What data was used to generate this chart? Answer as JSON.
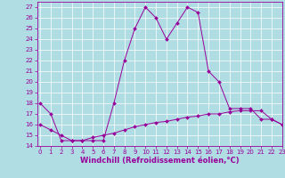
{
  "line1_y": [
    18,
    17,
    14.5,
    14.5,
    14.5,
    14.5,
    14.5,
    18,
    22,
    25,
    27,
    26,
    24,
    25.5,
    27,
    26.5,
    21,
    20,
    17.5,
    17.5,
    17.5,
    16.5,
    16.5,
    16
  ],
  "line2_y": [
    16,
    15.5,
    15,
    14.5,
    14.5,
    14.8,
    15,
    15.2,
    15.5,
    15.8,
    16,
    16.2,
    16.3,
    16.5,
    16.7,
    16.8,
    17,
    17,
    17.2,
    17.3,
    17.3,
    17.3,
    16.5,
    16
  ],
  "x": [
    0,
    1,
    2,
    3,
    4,
    5,
    6,
    7,
    8,
    9,
    10,
    11,
    12,
    13,
    14,
    15,
    16,
    17,
    18,
    19,
    20,
    21,
    22,
    23
  ],
  "ylim": [
    14,
    27.5
  ],
  "xlim": [
    -0.3,
    23
  ],
  "yticks": [
    14,
    15,
    16,
    17,
    18,
    19,
    20,
    21,
    22,
    23,
    24,
    25,
    26,
    27
  ],
  "xticks": [
    0,
    1,
    2,
    3,
    4,
    5,
    6,
    7,
    8,
    9,
    10,
    11,
    12,
    13,
    14,
    15,
    16,
    17,
    18,
    19,
    20,
    21,
    22,
    23
  ],
  "xlabel": "Windchill (Refroidissement éolien,°C)",
  "line_color": "#990099",
  "bg_color": "#b0dde4",
  "grid_color": "#ffffff",
  "tick_fontsize": 5.0,
  "xlabel_fontsize": 6.0,
  "marker": "D",
  "markersize": 2.0,
  "linewidth": 0.7
}
